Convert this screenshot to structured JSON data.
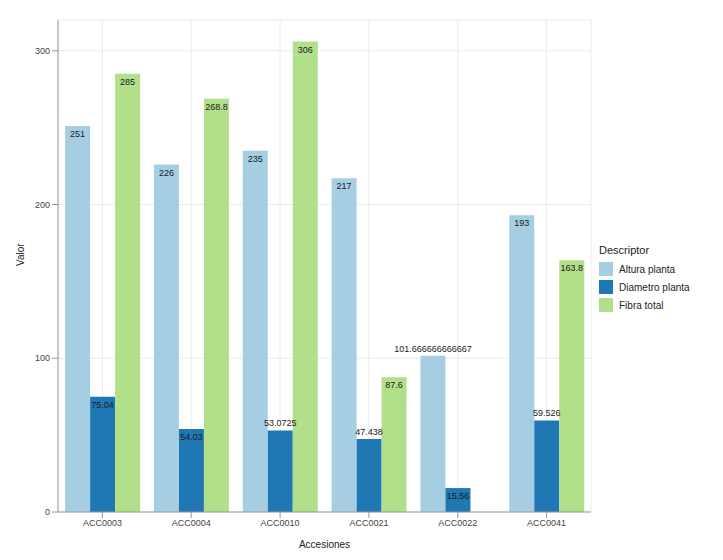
{
  "chart_data": {
    "type": "bar",
    "x_label": "Accesiones",
    "y_label": "Valor",
    "legend_title": "Descriptor",
    "categories": [
      "ACC0003",
      "ACC0004",
      "ACC0010",
      "ACC0021",
      "ACC0022",
      "ACC0041"
    ],
    "series": [
      {
        "name": "Altura planta",
        "color": "#a6cee3",
        "values": [
          251,
          226,
          235,
          217,
          101.666666666667,
          193
        ]
      },
      {
        "name": "Diametro planta",
        "color": "#1f78b4",
        "values": [
          75.04,
          54.03,
          53.0725,
          47.438,
          15.56,
          59.526
        ]
      },
      {
        "name": "Fibra total",
        "color": "#b2df8a",
        "values": [
          285,
          268.8,
          306,
          87.6,
          0,
          163.8
        ]
      }
    ],
    "ylim": [
      0,
      320
    ],
    "yticks": [
      0,
      100,
      200,
      300
    ],
    "grid": true,
    "legend": "right",
    "data_labels": true
  }
}
